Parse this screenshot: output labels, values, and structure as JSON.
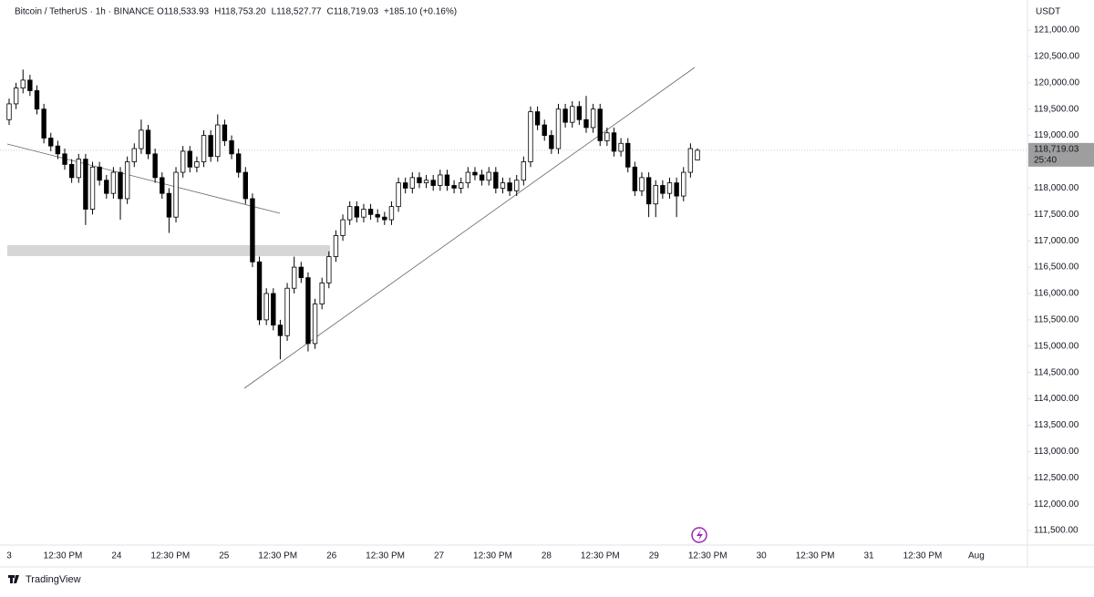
{
  "chart_data": {
    "type": "candlestick",
    "title": "Bitcoin / TetherUS · 1h · BINANCE",
    "ohlc_labels": [
      "O118,533.93",
      "H118,753.20",
      "L118,527.77",
      "C118,719.03",
      "+185.10 (+0.16%)"
    ],
    "currency": "USDT",
    "brand": "TradingView",
    "up_color": "#ffffff",
    "down_color": "#000000",
    "open": [
      119300,
      119600,
      119900,
      120050,
      119850,
      119500,
      118950,
      118800,
      118650,
      118450,
      118200,
      118550,
      117600,
      118400,
      118150,
      117900,
      118300,
      117800,
      118500,
      118750,
      119100,
      118650,
      118200,
      117900,
      117450,
      118300,
      118700,
      118400,
      118500,
      119000,
      118600,
      119200,
      118900,
      118650,
      118300,
      117800,
      116600,
      115500,
      116000,
      115400,
      115200,
      116100,
      116500,
      116300,
      115050,
      115800,
      116200,
      116700,
      117100,
      117400,
      117650,
      117450,
      117600,
      117500,
      117450,
      117400,
      117650,
      118100,
      118000,
      118200,
      118100,
      118150,
      118050,
      118250,
      118050,
      118000,
      118100,
      118300,
      118250,
      118150,
      118300,
      118000,
      118100,
      117950,
      118150,
      118500,
      119450,
      119200,
      119000,
      118750,
      119500,
      119250,
      119550,
      119300,
      119150,
      119500,
      118900,
      119050,
      118700,
      118850,
      118400,
      117950,
      118200,
      117700,
      118050,
      117900,
      118100,
      117850,
      118300,
      118533.93
    ],
    "high": [
      119700,
      120000,
      120250,
      120150,
      119950,
      119600,
      119050,
      118900,
      118750,
      118550,
      118650,
      118650,
      118500,
      118500,
      118250,
      118400,
      118400,
      118600,
      118850,
      119300,
      119200,
      118750,
      118300,
      118000,
      118400,
      118800,
      118800,
      118600,
      119100,
      119100,
      119400,
      119300,
      119000,
      118750,
      118400,
      117900,
      116700,
      116100,
      116100,
      115500,
      116200,
      116700,
      116600,
      116400,
      115900,
      116300,
      116800,
      117200,
      117500,
      117750,
      117750,
      117700,
      117700,
      117600,
      117550,
      117750,
      118200,
      118200,
      118300,
      118300,
      118250,
      118250,
      118350,
      118350,
      118150,
      118200,
      118400,
      118400,
      118350,
      118400,
      118400,
      118200,
      118200,
      118250,
      118600,
      119550,
      119550,
      119300,
      119100,
      119600,
      119600,
      119650,
      119650,
      119750,
      119600,
      119600,
      119150,
      119150,
      118950,
      118950,
      118500,
      118300,
      118300,
      118150,
      118150,
      118200,
      118200,
      118400,
      118850,
      118753.2
    ],
    "low": [
      119200,
      119500,
      119800,
      119750,
      119400,
      118850,
      118700,
      118550,
      118350,
      118100,
      118100,
      117300,
      117500,
      118050,
      117800,
      117800,
      117400,
      117700,
      118400,
      118650,
      118550,
      118100,
      117800,
      117150,
      117350,
      118200,
      118300,
      118300,
      118400,
      118500,
      118500,
      118800,
      118550,
      118200,
      117700,
      116500,
      115400,
      115400,
      115300,
      114750,
      115100,
      116000,
      116200,
      114900,
      114950,
      115700,
      116100,
      116600,
      117000,
      117300,
      117350,
      117350,
      117400,
      117350,
      117300,
      117300,
      117550,
      117900,
      117900,
      118000,
      118000,
      117950,
      117950,
      117950,
      117900,
      117900,
      118000,
      118150,
      118050,
      118050,
      117900,
      117900,
      117850,
      117850,
      118050,
      118400,
      119100,
      118900,
      118650,
      118650,
      119150,
      119150,
      119200,
      119050,
      119050,
      118800,
      118800,
      118600,
      118600,
      118300,
      117850,
      117850,
      117450,
      117450,
      117800,
      117800,
      117450,
      117750,
      118200,
      118527.77
    ],
    "close": [
      119600,
      119900,
      120050,
      119850,
      119500,
      118950,
      118800,
      118650,
      118450,
      118200,
      118550,
      117600,
      118400,
      118150,
      117900,
      118300,
      117800,
      118500,
      118750,
      119100,
      118650,
      118200,
      117900,
      117450,
      118300,
      118700,
      118400,
      118500,
      119000,
      118600,
      119200,
      118900,
      118650,
      118300,
      117800,
      116600,
      115500,
      116000,
      115400,
      115200,
      116100,
      116500,
      116300,
      115050,
      115800,
      116200,
      116700,
      117100,
      117400,
      117650,
      117450,
      117600,
      117500,
      117450,
      117400,
      117650,
      118100,
      118000,
      118200,
      118100,
      118150,
      118050,
      118250,
      118050,
      118000,
      118100,
      118300,
      118250,
      118150,
      118300,
      118000,
      118100,
      117950,
      118150,
      118500,
      119450,
      119200,
      119000,
      118750,
      119500,
      119250,
      119550,
      119300,
      119150,
      119500,
      118900,
      119050,
      118700,
      118850,
      118400,
      117950,
      118200,
      117700,
      118050,
      117900,
      118100,
      117850,
      118300,
      118750,
      118719.03
    ],
    "x_labels": [
      "3",
      "12:30 PM",
      "24",
      "12:30 PM",
      "25",
      "12:30 PM",
      "26",
      "12:30 PM",
      "27",
      "12:30 PM",
      "28",
      "12:30 PM",
      "29",
      "12:30 PM",
      "30",
      "12:30 PM",
      "31",
      "12:30 PM",
      "Aug"
    ],
    "ylim": [
      111225,
      121571
    ],
    "yticks": [
      {
        "value": 111500,
        "label": "111,500.00"
      },
      {
        "value": 112000,
        "label": "112,000.00"
      },
      {
        "value": 112500,
        "label": "112,500.00"
      },
      {
        "value": 113000,
        "label": "113,000.00"
      },
      {
        "value": 113500,
        "label": "113,500.00"
      },
      {
        "value": 114000,
        "label": "114,000.00"
      },
      {
        "value": 114500,
        "label": "114,500.00"
      },
      {
        "value": 115000,
        "label": "115,000.00"
      },
      {
        "value": 115500,
        "label": "115,500.00"
      },
      {
        "value": 116000,
        "label": "116,000.00"
      },
      {
        "value": 116500,
        "label": "116,500.00"
      },
      {
        "value": 117000,
        "label": "117,000.00"
      },
      {
        "value": 117500,
        "label": "117,500.00"
      },
      {
        "value": 118000,
        "label": "118,000.00"
      },
      {
        "value": 118500,
        "label": "118,500.00"
      },
      {
        "value": 119000,
        "label": "119,000.00"
      },
      {
        "value": 119500,
        "label": "119,500.00"
      },
      {
        "value": 120000,
        "label": "120,000.00"
      },
      {
        "value": 120500,
        "label": "120,500.00"
      },
      {
        "value": 121000,
        "label": "121,000.00"
      }
    ],
    "last_price": {
      "value": 118719.03,
      "label": "118,719.03"
    },
    "countdown": "25:40"
  }
}
